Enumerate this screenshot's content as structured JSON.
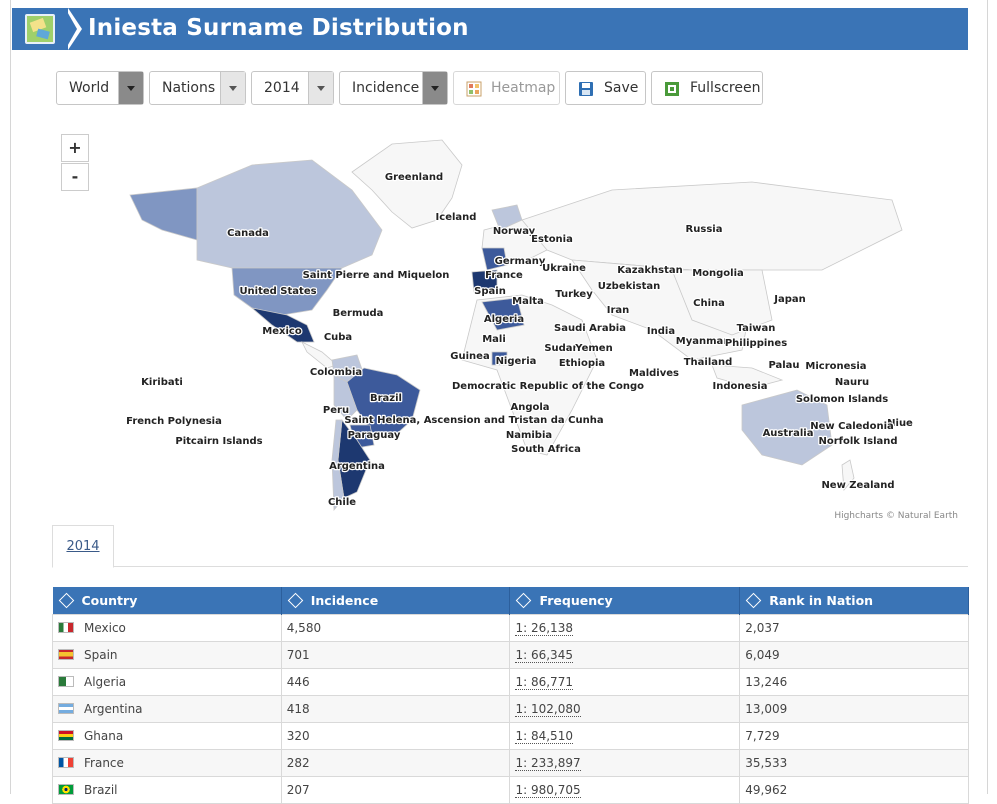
{
  "header": {
    "title": "Iniesta Surname Distribution",
    "icon": "map-icon"
  },
  "toolbar": {
    "region": "World",
    "level": "Nations",
    "year": "2014",
    "metric": "Incidence",
    "heatmap_label": "Heatmap",
    "save_label": "Save",
    "fullscreen_label": "Fullscreen"
  },
  "map": {
    "zoom_in": "+",
    "zoom_out": "-",
    "credits": "Highcharts © Natural Earth",
    "colors": {
      "none": "#f7f7f7",
      "low": "#bcc6dc",
      "mid": "#8096c2",
      "high": "#3d5a9b",
      "top": "#1d3870"
    },
    "labels": [
      "Greenland",
      "Iceland",
      "Canada",
      "Norway",
      "Estonia",
      "Germany",
      "France",
      "Ukraine",
      "Kazakhstan",
      "Mongolia",
      "Russia",
      "Spain",
      "Turkey",
      "Uzbekistan",
      "United States",
      "Saint Pierre and Miquelon",
      "Malta",
      "Iran",
      "China",
      "Japan",
      "Bermuda",
      "Algeria",
      "Saudi Arabia",
      "India",
      "Taiwan",
      "Mexico",
      "Cuba",
      "Mali",
      "Sudan",
      "Yemen",
      "Myanmar",
      "Philippines",
      "Guinea",
      "Nigeria",
      "Ethiopia",
      "Thailand",
      "Palau",
      "Micronesia",
      "Colombia",
      "Kiribati",
      "Democratic Republic of the Congo",
      "Maldives",
      "Indonesia",
      "Nauru",
      "Brazil",
      "Solomon Islands",
      "Peru",
      "Angola",
      "Saint Helena, Ascension and Tristan da Cunha",
      "French Polynesia",
      "Niue",
      "Paraguay",
      "New Caledonia",
      "Namibia",
      "Australia",
      "Pitcairn Islands",
      "Norfolk Island",
      "South Africa",
      "Argentina",
      "New Zealand",
      "Chile"
    ]
  },
  "tabs": [
    {
      "label": "2014"
    }
  ],
  "table": {
    "headers": [
      "Country",
      "Incidence",
      "Frequency",
      "Rank in Nation"
    ],
    "rows": [
      {
        "country": "Mexico",
        "incidence": "4,580",
        "frequency": "1: 26,138",
        "rank": "2,037"
      },
      {
        "country": "Spain",
        "incidence": "701",
        "frequency": "1: 66,345",
        "rank": "6,049"
      },
      {
        "country": "Algeria",
        "incidence": "446",
        "frequency": "1: 86,771",
        "rank": "13,246"
      },
      {
        "country": "Argentina",
        "incidence": "418",
        "frequency": "1: 102,080",
        "rank": "13,009"
      },
      {
        "country": "Ghana",
        "incidence": "320",
        "frequency": "1: 84,510",
        "rank": "7,729"
      },
      {
        "country": "France",
        "incidence": "282",
        "frequency": "1: 233,897",
        "rank": "35,533"
      },
      {
        "country": "Brazil",
        "incidence": "207",
        "frequency": "1: 980,705",
        "rank": "49,962"
      }
    ]
  }
}
